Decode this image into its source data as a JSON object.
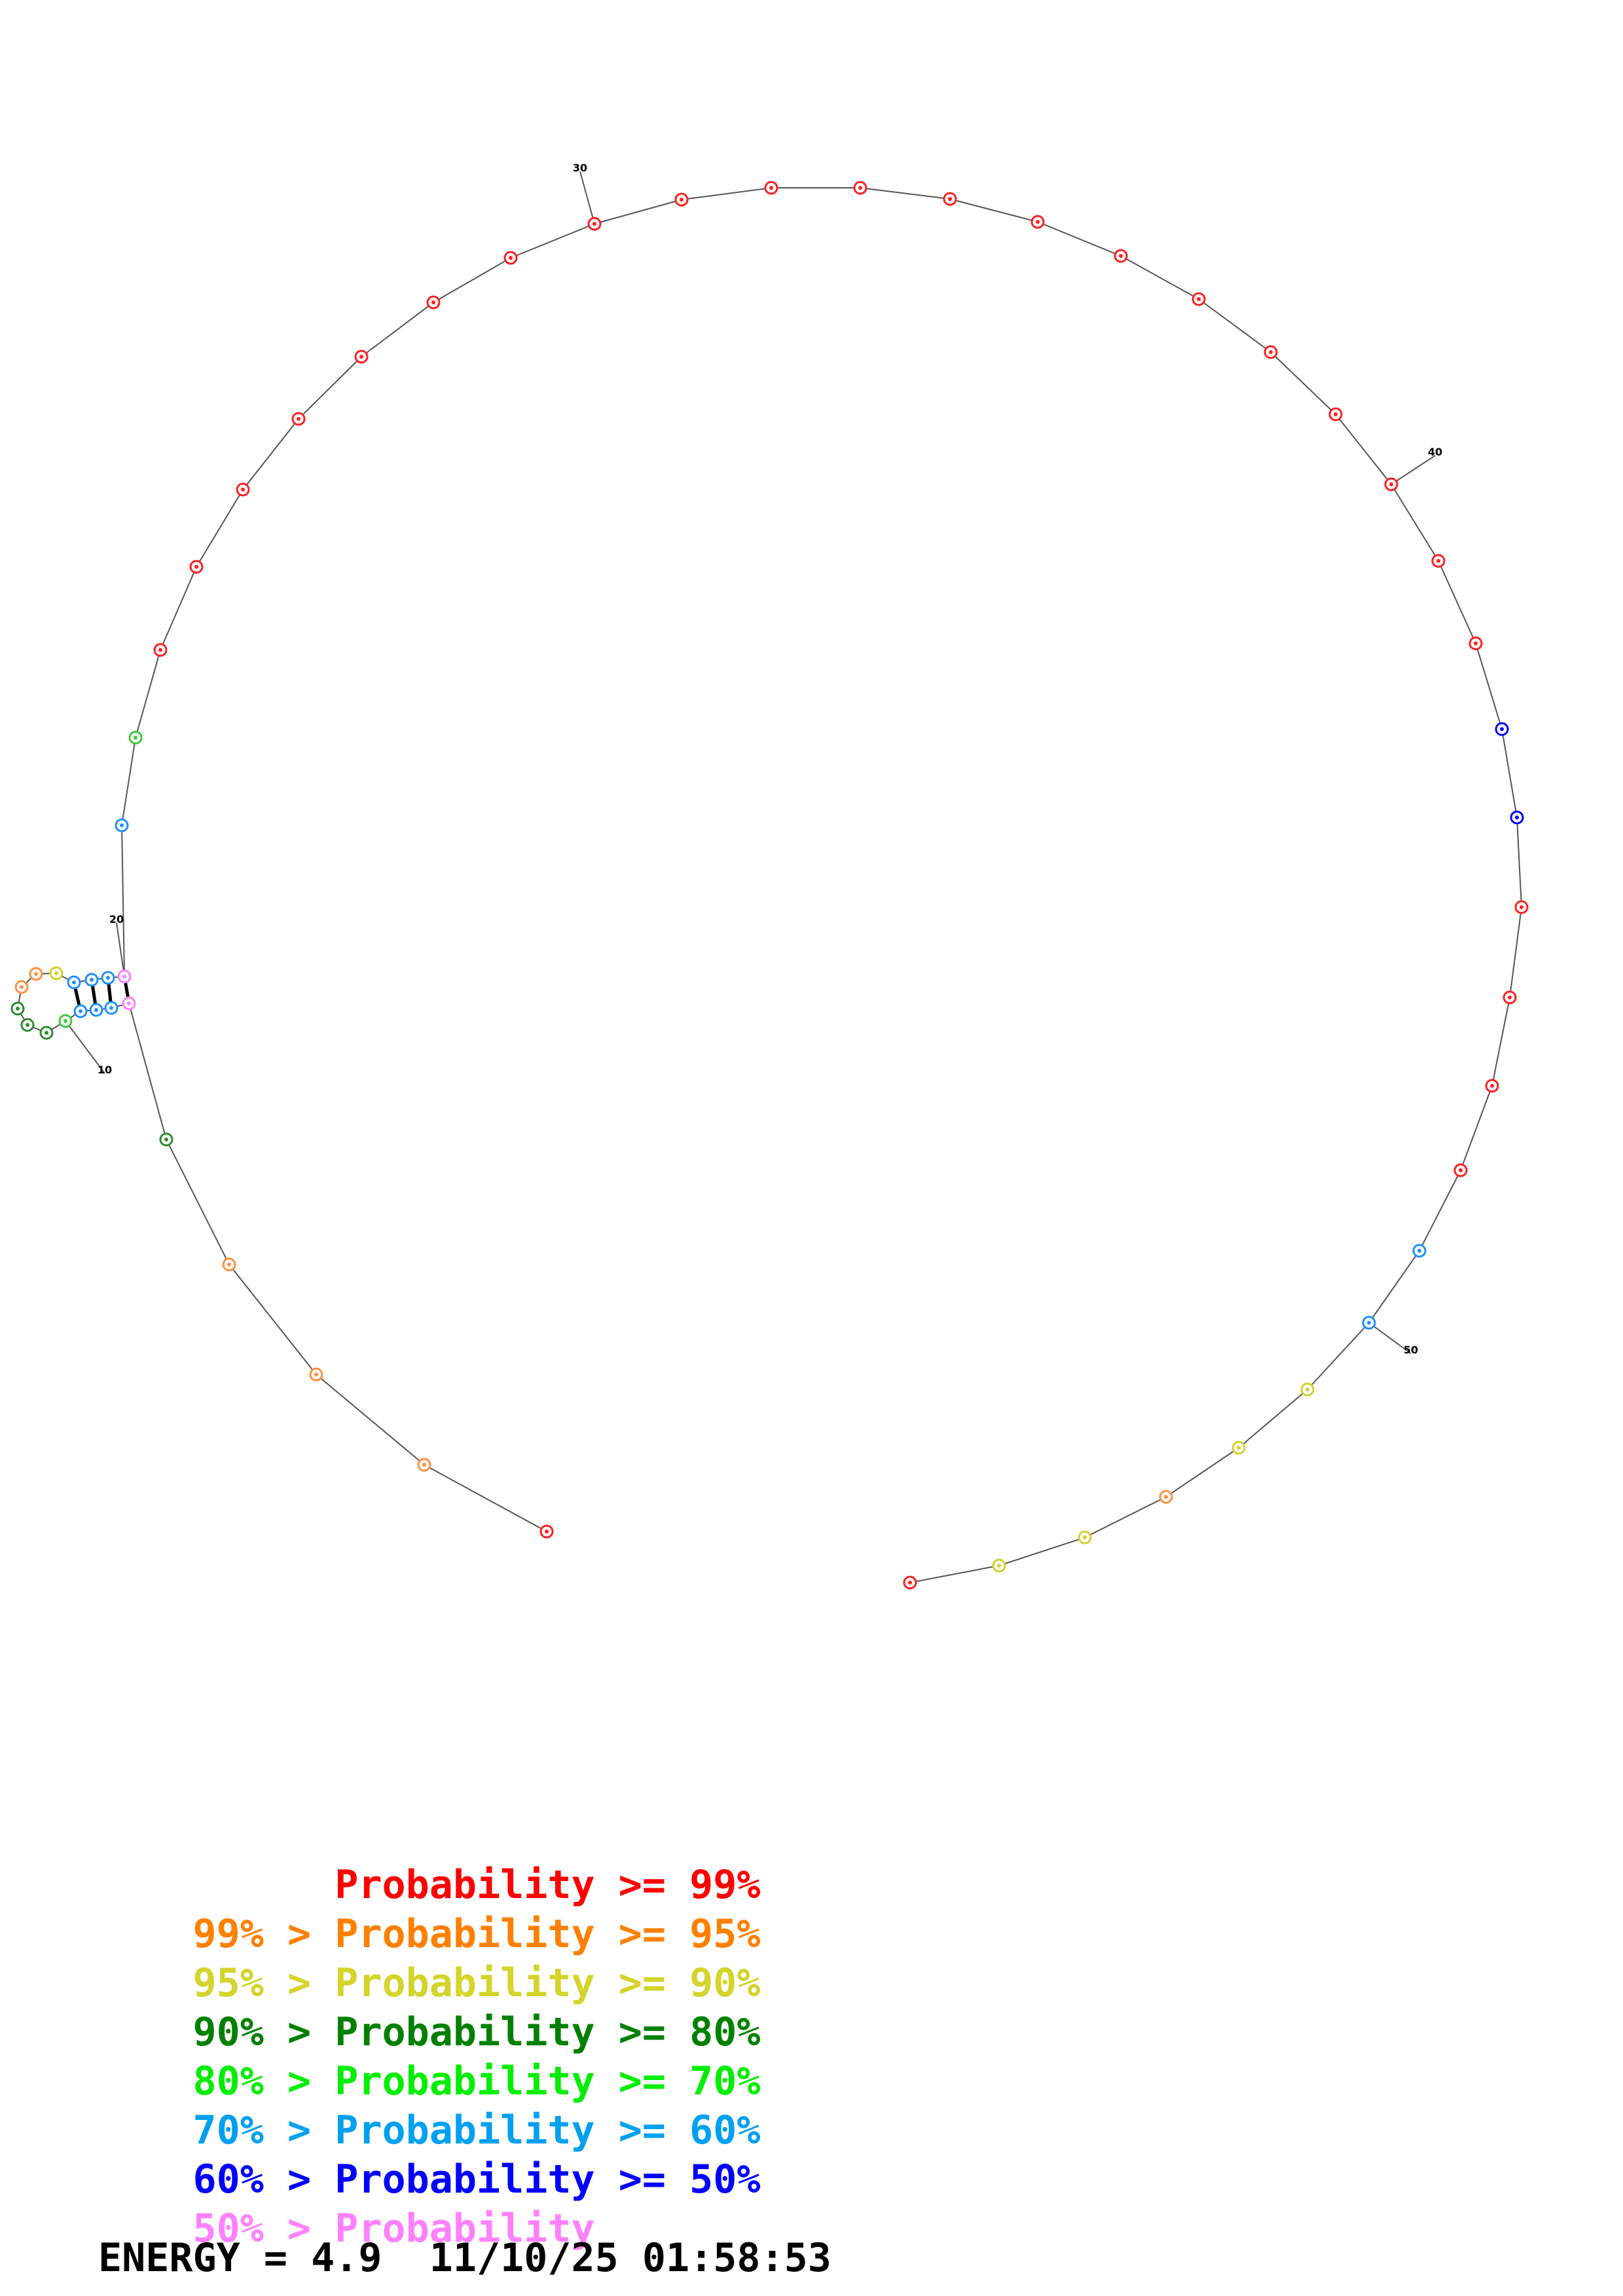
{
  "diagram": {
    "bases": [
      {
        "n": 1,
        "color": "#ff2020"
      },
      {
        "n": 2,
        "color": "#ff9040"
      },
      {
        "n": 3,
        "color": "#ff9040"
      },
      {
        "n": 4,
        "color": "#ff9040"
      },
      {
        "n": 5,
        "color": "#2e8b2e"
      },
      {
        "n": 6,
        "color": "#ff80ff"
      },
      {
        "n": 7,
        "color": "#1e90ff"
      },
      {
        "n": 8,
        "color": "#1e90ff"
      },
      {
        "n": 9,
        "color": "#1e90ff"
      },
      {
        "n": 10,
        "color": "#3cc83c"
      },
      {
        "n": 11,
        "color": "#2e8b2e"
      },
      {
        "n": 12,
        "color": "#2e8b2e"
      },
      {
        "n": 13,
        "color": "#2e8b2e"
      },
      {
        "n": 14,
        "color": "#ff9040"
      },
      {
        "n": 15,
        "color": "#ff9040"
      },
      {
        "n": 16,
        "color": "#d2d22a"
      },
      {
        "n": 17,
        "color": "#1e90ff"
      },
      {
        "n": 18,
        "color": "#1e90ff"
      },
      {
        "n": 19,
        "color": "#1e90ff"
      },
      {
        "n": 20,
        "color": "#ff80ff"
      },
      {
        "n": 21,
        "color": "#1e90ff"
      },
      {
        "n": 22,
        "color": "#3cc83c"
      },
      {
        "n": 23,
        "color": "#ff2020"
      },
      {
        "n": 24,
        "color": "#ff2020"
      },
      {
        "n": 25,
        "color": "#ff2020"
      },
      {
        "n": 26,
        "color": "#ff2020"
      },
      {
        "n": 27,
        "color": "#ff2020"
      },
      {
        "n": 28,
        "color": "#ff2020"
      },
      {
        "n": 29,
        "color": "#ff2020"
      },
      {
        "n": 30,
        "color": "#ff2020"
      },
      {
        "n": 31,
        "color": "#ff2020"
      },
      {
        "n": 32,
        "color": "#ff2020"
      },
      {
        "n": 33,
        "color": "#ff2020"
      },
      {
        "n": 34,
        "color": "#ff2020"
      },
      {
        "n": 35,
        "color": "#ff2020"
      },
      {
        "n": 36,
        "color": "#ff2020"
      },
      {
        "n": 37,
        "color": "#ff2020"
      },
      {
        "n": 38,
        "color": "#ff2020"
      },
      {
        "n": 39,
        "color": "#ff2020"
      },
      {
        "n": 40,
        "color": "#ff2020"
      },
      {
        "n": 41,
        "color": "#ff2020"
      },
      {
        "n": 42,
        "color": "#ff2020"
      },
      {
        "n": 43,
        "color": "#0000ff"
      },
      {
        "n": 44,
        "color": "#0000ff"
      },
      {
        "n": 45,
        "color": "#ff2020"
      },
      {
        "n": 46,
        "color": "#ff2020"
      },
      {
        "n": 47,
        "color": "#ff2020"
      },
      {
        "n": 48,
        "color": "#ff2020"
      },
      {
        "n": 49,
        "color": "#1e90ff"
      },
      {
        "n": 50,
        "color": "#1e90ff"
      },
      {
        "n": 51,
        "color": "#d2d22a"
      },
      {
        "n": 52,
        "color": "#d2d22a"
      },
      {
        "n": 53,
        "color": "#ff9040"
      },
      {
        "n": 54,
        "color": "#d2d22a"
      },
      {
        "n": 55,
        "color": "#d2d22a"
      },
      {
        "n": 56,
        "color": "#ff2020"
      }
    ],
    "number_labels": [
      "10",
      "20",
      "30",
      "40",
      "50"
    ],
    "pairs": [
      [
        6,
        20
      ],
      [
        7,
        19
      ],
      [
        8,
        18
      ],
      [
        9,
        17
      ]
    ]
  },
  "legend": [
    {
      "left": "      ",
      "right": "Probability >= 99%",
      "left_color": "#ff0000",
      "right_color": "#ff0000"
    },
    {
      "left": "99% > ",
      "right": "Probability >= 95%",
      "left_color": "#ff8000",
      "right_color": "#ff8000"
    },
    {
      "left": "95% > ",
      "right": "Probability >= 90%",
      "left_color": "#d4d42a",
      "right_color": "#d4d42a"
    },
    {
      "left": "90% > ",
      "right": "Probability >= 80%",
      "left_color": "#008000",
      "right_color": "#008000"
    },
    {
      "left": "80% > ",
      "right": "Probability >= 70%",
      "left_color": "#00ee00",
      "right_color": "#00ee00"
    },
    {
      "left": "70% > ",
      "right": "Probability >= 60%",
      "left_color": "#00a0f0",
      "right_color": "#00a0f0"
    },
    {
      "left": "60% > ",
      "right": "Probability >= 50%",
      "left_color": "#0000ff",
      "right_color": "#0000ff"
    },
    {
      "left": "50% > ",
      "right": "Probability",
      "left_color": "#ff80ff",
      "right_color": "#ff80ff"
    }
  ],
  "energy": {
    "text": "ENERGY = 4.9  11/10/25 01:58:53"
  }
}
